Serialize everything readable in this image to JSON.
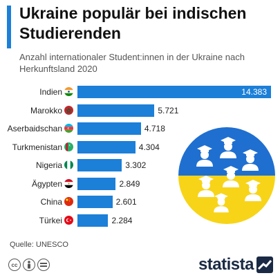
{
  "header": {
    "title": "Ukraine populär bei indischen Studierenden",
    "subtitle": "Anzahl internationaler Student:innen in der Ukraine nach Herkunftsland 2020"
  },
  "chart_data": {
    "type": "bar",
    "orientation": "horizontal",
    "categories": [
      "Indien",
      "Marokko",
      "Aserbaidschan",
      "Turkmenistan",
      "Nigeria",
      "Ägypten",
      "China",
      "Türkei"
    ],
    "values": [
      14383,
      5721,
      4718,
      4304,
      3302,
      2849,
      2601,
      2284
    ],
    "value_labels": [
      "14.383",
      "5.721",
      "4.718",
      "4.304",
      "3.302",
      "2.849",
      "2.601",
      "2.284"
    ],
    "title": "Ukraine populär bei indischen Studierenden",
    "xlabel": "",
    "ylabel": "",
    "xlim": [
      0,
      14383
    ],
    "grid": false,
    "legend": "none",
    "flags": [
      "india-flag-icon",
      "morocco-flag-icon",
      "azerbaijan-flag-icon",
      "turkmenistan-flag-icon",
      "nigeria-flag-icon",
      "egypt-flag-icon",
      "china-flag-icon",
      "turkey-flag-icon"
    ]
  },
  "source": "Quelle: UNESCO",
  "brand": {
    "name": "statista"
  },
  "colors": {
    "bar": "#1c7fd8",
    "accent": "#1c7fd8",
    "ukraine_blue": "#1f6fd0",
    "ukraine_yellow": "#f7d417",
    "brand_navy": "#1a2a44"
  },
  "icons": {
    "illustration": "ukraine-graduates-illustration",
    "license": [
      "cc-icon",
      "by-icon",
      "nd-icon"
    ],
    "logo": "statista-logo-icon"
  }
}
